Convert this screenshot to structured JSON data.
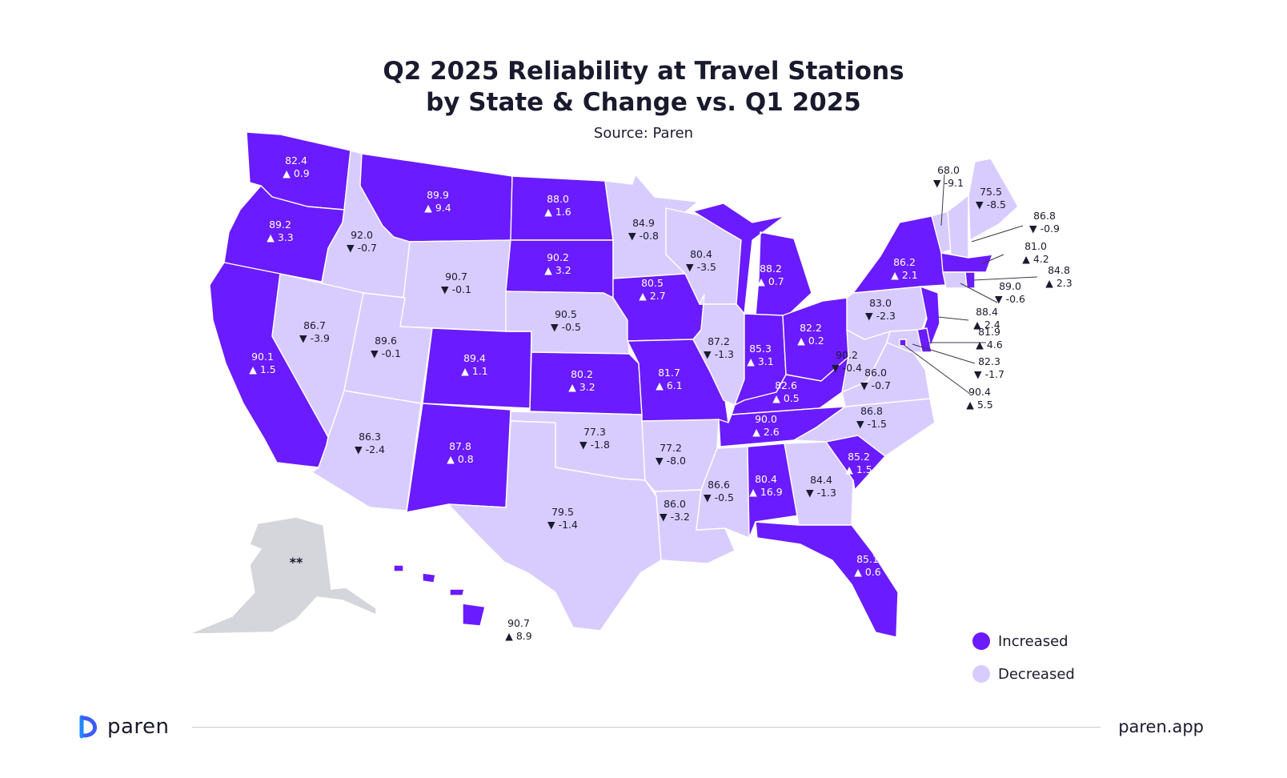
{
  "title_line1": "Q2 2025 Reliability at Travel Stations",
  "title_line2": "by State & Change vs. Q1 2025",
  "subtitle": "Source: Paren",
  "colors": {
    "increased": "#6a1bff",
    "decreased": "#d8ccff",
    "no_data": "#d5d5dc",
    "line": "#3a3a4a"
  },
  "legend": {
    "increased": "Increased",
    "decreased": "Decreased"
  },
  "no_data_mark": "**",
  "brand": "paren",
  "site": "paren.app",
  "states": [
    {
      "id": "WA",
      "value": "82.4",
      "change": "▲ 0.9",
      "status": "increased"
    },
    {
      "id": "OR",
      "value": "89.2",
      "change": "▲ 3.3",
      "status": "increased"
    },
    {
      "id": "CA",
      "value": "90.1",
      "change": "▲ 1.5",
      "status": "increased"
    },
    {
      "id": "ID",
      "value": "92.0",
      "change": "▼ -0.7",
      "status": "decreased"
    },
    {
      "id": "NV",
      "value": "86.7",
      "change": "▼ -3.9",
      "status": "decreased"
    },
    {
      "id": "MT",
      "value": "89.9",
      "change": "▲ 9.4",
      "status": "increased"
    },
    {
      "id": "WY",
      "value": "90.7",
      "change": "▼ -0.1",
      "status": "decreased"
    },
    {
      "id": "UT",
      "value": "89.6",
      "change": "▼ -0.1",
      "status": "decreased"
    },
    {
      "id": "AZ",
      "value": "86.3",
      "change": "▼ -2.4",
      "status": "decreased"
    },
    {
      "id": "CO",
      "value": "89.4",
      "change": "▲ 1.1",
      "status": "increased"
    },
    {
      "id": "NM",
      "value": "87.8",
      "change": "▲ 0.8",
      "status": "increased"
    },
    {
      "id": "ND",
      "value": "88.0",
      "change": "▲ 1.6",
      "status": "increased"
    },
    {
      "id": "SD",
      "value": "90.2",
      "change": "▲ 3.2",
      "status": "increased"
    },
    {
      "id": "NE",
      "value": "90.5",
      "change": "▼ -0.5",
      "status": "decreased"
    },
    {
      "id": "KS",
      "value": "80.2",
      "change": "▲ 3.2",
      "status": "increased"
    },
    {
      "id": "OK",
      "value": "77.3",
      "change": "▼ -1.8",
      "status": "decreased"
    },
    {
      "id": "TX",
      "value": "79.5",
      "change": "▼ -1.4",
      "status": "decreased"
    },
    {
      "id": "MN",
      "value": "84.9",
      "change": "▼ -0.8",
      "status": "decreased"
    },
    {
      "id": "IA",
      "value": "80.5",
      "change": "▲ 2.7",
      "status": "increased"
    },
    {
      "id": "MO",
      "value": "81.7",
      "change": "▲ 6.1",
      "status": "increased"
    },
    {
      "id": "AR",
      "value": "77.2",
      "change": "▼ -8.0",
      "status": "decreased"
    },
    {
      "id": "LA",
      "value": "86.0",
      "change": "▼ -3.2",
      "status": "decreased"
    },
    {
      "id": "WI",
      "value": "80.4",
      "change": "▼ -3.5",
      "status": "decreased"
    },
    {
      "id": "IL",
      "value": "87.2",
      "change": "▼ -1.3",
      "status": "decreased"
    },
    {
      "id": "MI",
      "value": "88.2",
      "change": "▲ 0.7",
      "status": "increased"
    },
    {
      "id": "IN",
      "value": "85.3",
      "change": "▲ 3.1",
      "status": "increased"
    },
    {
      "id": "OH",
      "value": "82.2",
      "change": "▲ 0.2",
      "status": "increased"
    },
    {
      "id": "KY",
      "value": "82.6",
      "change": "▲ 0.5",
      "status": "increased"
    },
    {
      "id": "TN",
      "value": "90.0",
      "change": "▲ 2.6",
      "status": "increased"
    },
    {
      "id": "MS",
      "value": "86.6",
      "change": "▼ -0.5",
      "status": "decreased"
    },
    {
      "id": "AL",
      "value": "80.4",
      "change": "▲ 16.9",
      "status": "increased"
    },
    {
      "id": "GA",
      "value": "84.4",
      "change": "▼ -1.3",
      "status": "decreased"
    },
    {
      "id": "FL",
      "value": "85.1",
      "change": "▲ 0.6",
      "status": "increased"
    },
    {
      "id": "SC",
      "value": "85.2",
      "change": "▲ 1.5",
      "status": "increased"
    },
    {
      "id": "NC",
      "value": "86.8",
      "change": "▼ -1.5",
      "status": "decreased"
    },
    {
      "id": "VA",
      "value": "86.0",
      "change": "▼ -0.7",
      "status": "decreased"
    },
    {
      "id": "WV",
      "value": "90.2",
      "change": "▼ -0.4",
      "status": "decreased"
    },
    {
      "id": "PA",
      "value": "83.0",
      "change": "▼ -2.3",
      "status": "decreased"
    },
    {
      "id": "NY",
      "value": "86.2",
      "change": "▲ 2.1",
      "status": "increased"
    },
    {
      "id": "ME",
      "value": "75.5",
      "change": "▼ -8.5",
      "status": "decreased"
    },
    {
      "id": "VT",
      "value": "68.0",
      "change": "▼ -9.1",
      "status": "decreased"
    },
    {
      "id": "NH",
      "value": "86.8",
      "change": "▼ -0.9",
      "status": "decreased"
    },
    {
      "id": "MA",
      "value": "81.0",
      "change": "▲ 4.2",
      "status": "increased"
    },
    {
      "id": "RI",
      "value": "84.8",
      "change": "▲ 2.3",
      "status": "increased"
    },
    {
      "id": "CT",
      "value": "89.0",
      "change": "▼ -0.6",
      "status": "decreased"
    },
    {
      "id": "NJ",
      "value": "88.4",
      "change": "▲ 2.4",
      "status": "increased"
    },
    {
      "id": "DE",
      "value": "81.9",
      "change": "▲ 4.6",
      "status": "increased"
    },
    {
      "id": "MD",
      "value": "82.3",
      "change": "▼ -1.7",
      "status": "decreased"
    },
    {
      "id": "DC",
      "value": "90.4",
      "change": "▲ 5.5",
      "status": "increased"
    },
    {
      "id": "HI",
      "value": "90.7",
      "change": "▲ 8.9",
      "status": "increased"
    },
    {
      "id": "AK",
      "value": "",
      "change": "",
      "status": "no_data"
    }
  ]
}
